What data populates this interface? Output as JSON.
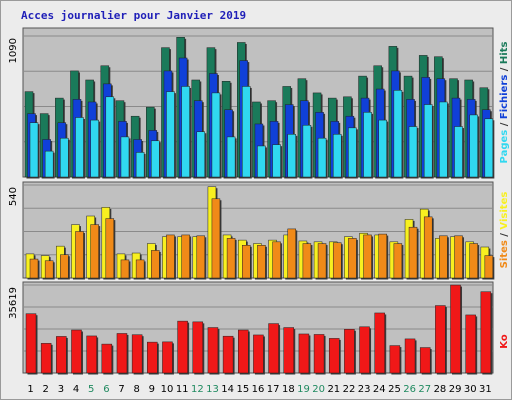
{
  "title": "Acces journalier pour Janvier 2019",
  "colors": {
    "hits": "#1a7a5a",
    "files": "#1040d8",
    "pages": "#30d8f0",
    "visits": "#f8f020",
    "sites": "#f08a18",
    "kb": "#f01818",
    "weekend": "#208a60",
    "panel": "#c0c0c0",
    "title": "#1f1fb8"
  },
  "chart_data": [
    {
      "type": "bar",
      "categories": [
        "1",
        "2",
        "3",
        "4",
        "5",
        "6",
        "7",
        "8",
        "9",
        "10",
        "11",
        "12",
        "13",
        "14",
        "15",
        "16",
        "17",
        "18",
        "19",
        "20",
        "21",
        "22",
        "23",
        "24",
        "25",
        "26",
        "27",
        "28",
        "29",
        "30",
        "31"
      ],
      "weekend_days": [
        "5",
        "6",
        "12",
        "13",
        "19",
        "20",
        "26",
        "27"
      ],
      "ylabel_top": "1090",
      "ylim": [
        0,
        1090
      ],
      "series": [
        {
          "name": "Hits",
          "values": [
            660,
            490,
            610,
            820,
            750,
            860,
            590,
            470,
            540,
            1000,
            1080,
            750,
            1000,
            740,
            1040,
            580,
            590,
            700,
            760,
            650,
            610,
            620,
            780,
            860,
            1010,
            780,
            940,
            930,
            760,
            750,
            690
          ]
        },
        {
          "name": "Fichiers",
          "values": [
            490,
            290,
            420,
            600,
            580,
            720,
            430,
            290,
            360,
            820,
            920,
            590,
            800,
            520,
            900,
            410,
            430,
            560,
            590,
            500,
            430,
            470,
            610,
            680,
            820,
            600,
            770,
            760,
            610,
            600,
            520
          ]
        },
        {
          "name": "Pages",
          "values": [
            420,
            200,
            300,
            460,
            440,
            620,
            310,
            190,
            280,
            660,
            700,
            350,
            650,
            310,
            700,
            240,
            250,
            330,
            400,
            300,
            330,
            380,
            500,
            440,
            670,
            390,
            560,
            580,
            390,
            480,
            450
          ]
        }
      ],
      "side_label": [
        "Pages",
        "Fichiers",
        "Hits"
      ]
    },
    {
      "type": "bar",
      "categories": [
        "1",
        "2",
        "3",
        "4",
        "5",
        "6",
        "7",
        "8",
        "9",
        "10",
        "11",
        "12",
        "13",
        "14",
        "15",
        "16",
        "17",
        "18",
        "19",
        "20",
        "21",
        "22",
        "23",
        "24",
        "25",
        "26",
        "27",
        "28",
        "29",
        "30",
        "31"
      ],
      "ylabel_top": "540",
      "ylim": [
        0,
        540
      ],
      "series": [
        {
          "name": "Visites",
          "values": [
            140,
            130,
            185,
            310,
            360,
            410,
            140,
            145,
            200,
            240,
            240,
            240,
            530,
            250,
            220,
            200,
            220,
            250,
            215,
            210,
            210,
            240,
            260,
            250,
            210,
            340,
            400,
            230,
            240,
            210,
            180
          ]
        },
        {
          "name": "Sites",
          "values": [
            110,
            100,
            135,
            270,
            310,
            345,
            105,
            105,
            160,
            250,
            250,
            245,
            460,
            230,
            190,
            190,
            210,
            285,
            200,
            200,
            205,
            230,
            250,
            255,
            200,
            295,
            355,
            245,
            245,
            200,
            130
          ]
        }
      ],
      "side_label": [
        "Sites",
        "Visites"
      ]
    },
    {
      "type": "bar",
      "categories": [
        "1",
        "2",
        "3",
        "4",
        "5",
        "6",
        "7",
        "8",
        "9",
        "10",
        "11",
        "12",
        "13",
        "14",
        "15",
        "16",
        "17",
        "18",
        "19",
        "20",
        "21",
        "22",
        "23",
        "24",
        "25",
        "26",
        "27",
        "28",
        "29",
        "30",
        "31"
      ],
      "ylabel_top": "35619",
      "ylim": [
        0,
        35619
      ],
      "series": [
        {
          "name": "Ko",
          "values": [
            24000,
            12000,
            14800,
            17400,
            15000,
            11700,
            16000,
            15500,
            12500,
            12600,
            21000,
            20700,
            18400,
            14900,
            17400,
            15400,
            20000,
            18400,
            15800,
            15600,
            14000,
            17700,
            18700,
            24300,
            11100,
            13800,
            10300,
            27300,
            35600,
            23500,
            32900
          ]
        }
      ],
      "side_label": [
        "Ko"
      ]
    }
  ]
}
